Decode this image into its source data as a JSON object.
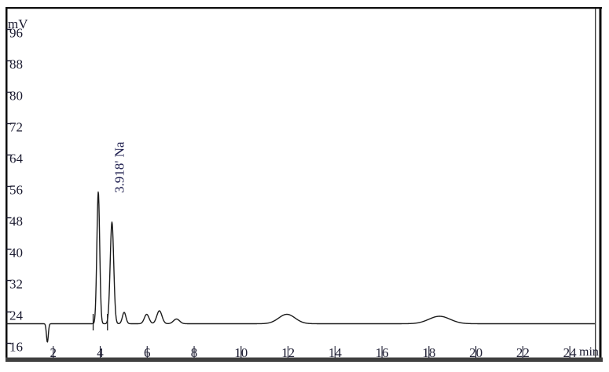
{
  "chart_data": {
    "type": "line",
    "title": "",
    "xlabel": "min",
    "ylabel": "mV",
    "x_ticks": [
      2,
      4,
      6,
      8,
      10,
      12,
      14,
      16,
      18,
      20,
      22,
      24
    ],
    "y_ticks": [
      16,
      24,
      32,
      40,
      48,
      56,
      64,
      72,
      80,
      88,
      96
    ],
    "xlim": [
      0,
      25.1
    ],
    "ylim": [
      13.2,
      102.6
    ],
    "grid": false,
    "legend": false,
    "baseline_mV": 21.9,
    "peaks": [
      {
        "t_min": 1.75,
        "amplitude_mV": -4.7,
        "sigma_min": 0.04,
        "note": "injection dip"
      },
      {
        "t_min": 3.918,
        "amplitude_mV": 33.6,
        "sigma_min": 0.06,
        "analyte": "Na",
        "apex_mV": 55.5
      },
      {
        "t_min": 4.5,
        "amplitude_mV": 25.9,
        "sigma_min": 0.075,
        "apex_mV": 47.8
      },
      {
        "t_min": 5.02,
        "amplitude_mV": 2.9,
        "sigma_min": 0.075
      },
      {
        "t_min": 5.98,
        "amplitude_mV": 2.4,
        "sigma_min": 0.1
      },
      {
        "t_min": 6.52,
        "amplitude_mV": 3.3,
        "sigma_min": 0.11
      },
      {
        "t_min": 7.25,
        "amplitude_mV": 1.2,
        "sigma_min": 0.13
      },
      {
        "t_min": 11.95,
        "amplitude_mV": 2.4,
        "sigma_min": 0.35
      },
      {
        "t_min": 18.45,
        "amplitude_mV": 1.9,
        "sigma_min": 0.45
      }
    ],
    "integration_marks_min": [
      3.7,
      4.31
    ],
    "peak_label": {
      "text": "3.918' Na",
      "retention_min": 3.918,
      "analyte": "Na",
      "rotation_deg": -90
    },
    "colors": {
      "background": "#ffffff",
      "trace": "#1a1a1a",
      "text": "#1b1b30",
      "peak_label_text": "#1d1d4e",
      "frame": "#0d0d0d",
      "bottom_bar": "#3f3f3f"
    }
  }
}
